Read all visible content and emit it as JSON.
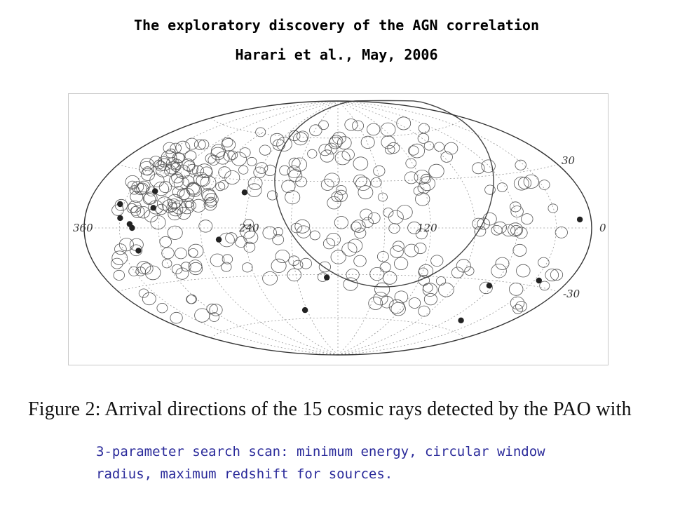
{
  "header": {
    "title": "The exploratory discovery of the AGN correlation",
    "subtitle": "Harari et al., May, 2006"
  },
  "figure": {
    "projection": "Hammer-Aitoff sky map",
    "axis_labels": {
      "lon_360": "360",
      "lon_240": "240",
      "lon_120": "120",
      "lon_0": "0",
      "lat_30": "30",
      "lat_minus30": "-30"
    },
    "caption": "Figure 2:  Arrival directions of the 15 cosmic rays detected by the PAO with"
  },
  "note": {
    "line1": "3-parameter search scan: minimum energy, circular window",
    "line2": "radius, maximum redshift for sources."
  },
  "colors": {
    "note_text": "#2a2a9a",
    "marks": "#222222"
  },
  "chart_data": {
    "type": "scatter",
    "title": "",
    "xlabel": "",
    "ylabel": "",
    "xlim": [
      360,
      0
    ],
    "ylim": [
      -90,
      90
    ],
    "cosmic_rays": [
      {
        "lon": 333,
        "lat": 12
      },
      {
        "lon": 306,
        "lat": 11
      },
      {
        "lon": 330,
        "lat": 5
      },
      {
        "lon": 310,
        "lat": 20
      },
      {
        "lon": 322,
        "lat": 2
      },
      {
        "lon": 320,
        "lat": 0
      },
      {
        "lon": 244,
        "lat": 22
      },
      {
        "lon": 258,
        "lat": -7
      },
      {
        "lon": 318,
        "lat": -12
      },
      {
        "lon": 188,
        "lat": -32
      },
      {
        "lon": 212,
        "lat": -54
      },
      {
        "lon": 63,
        "lat": -33
      },
      {
        "lon": 47,
        "lat": -54
      },
      {
        "lon": 26,
        "lat": -27
      },
      {
        "lon": 10,
        "lat": 4
      }
    ]
  }
}
